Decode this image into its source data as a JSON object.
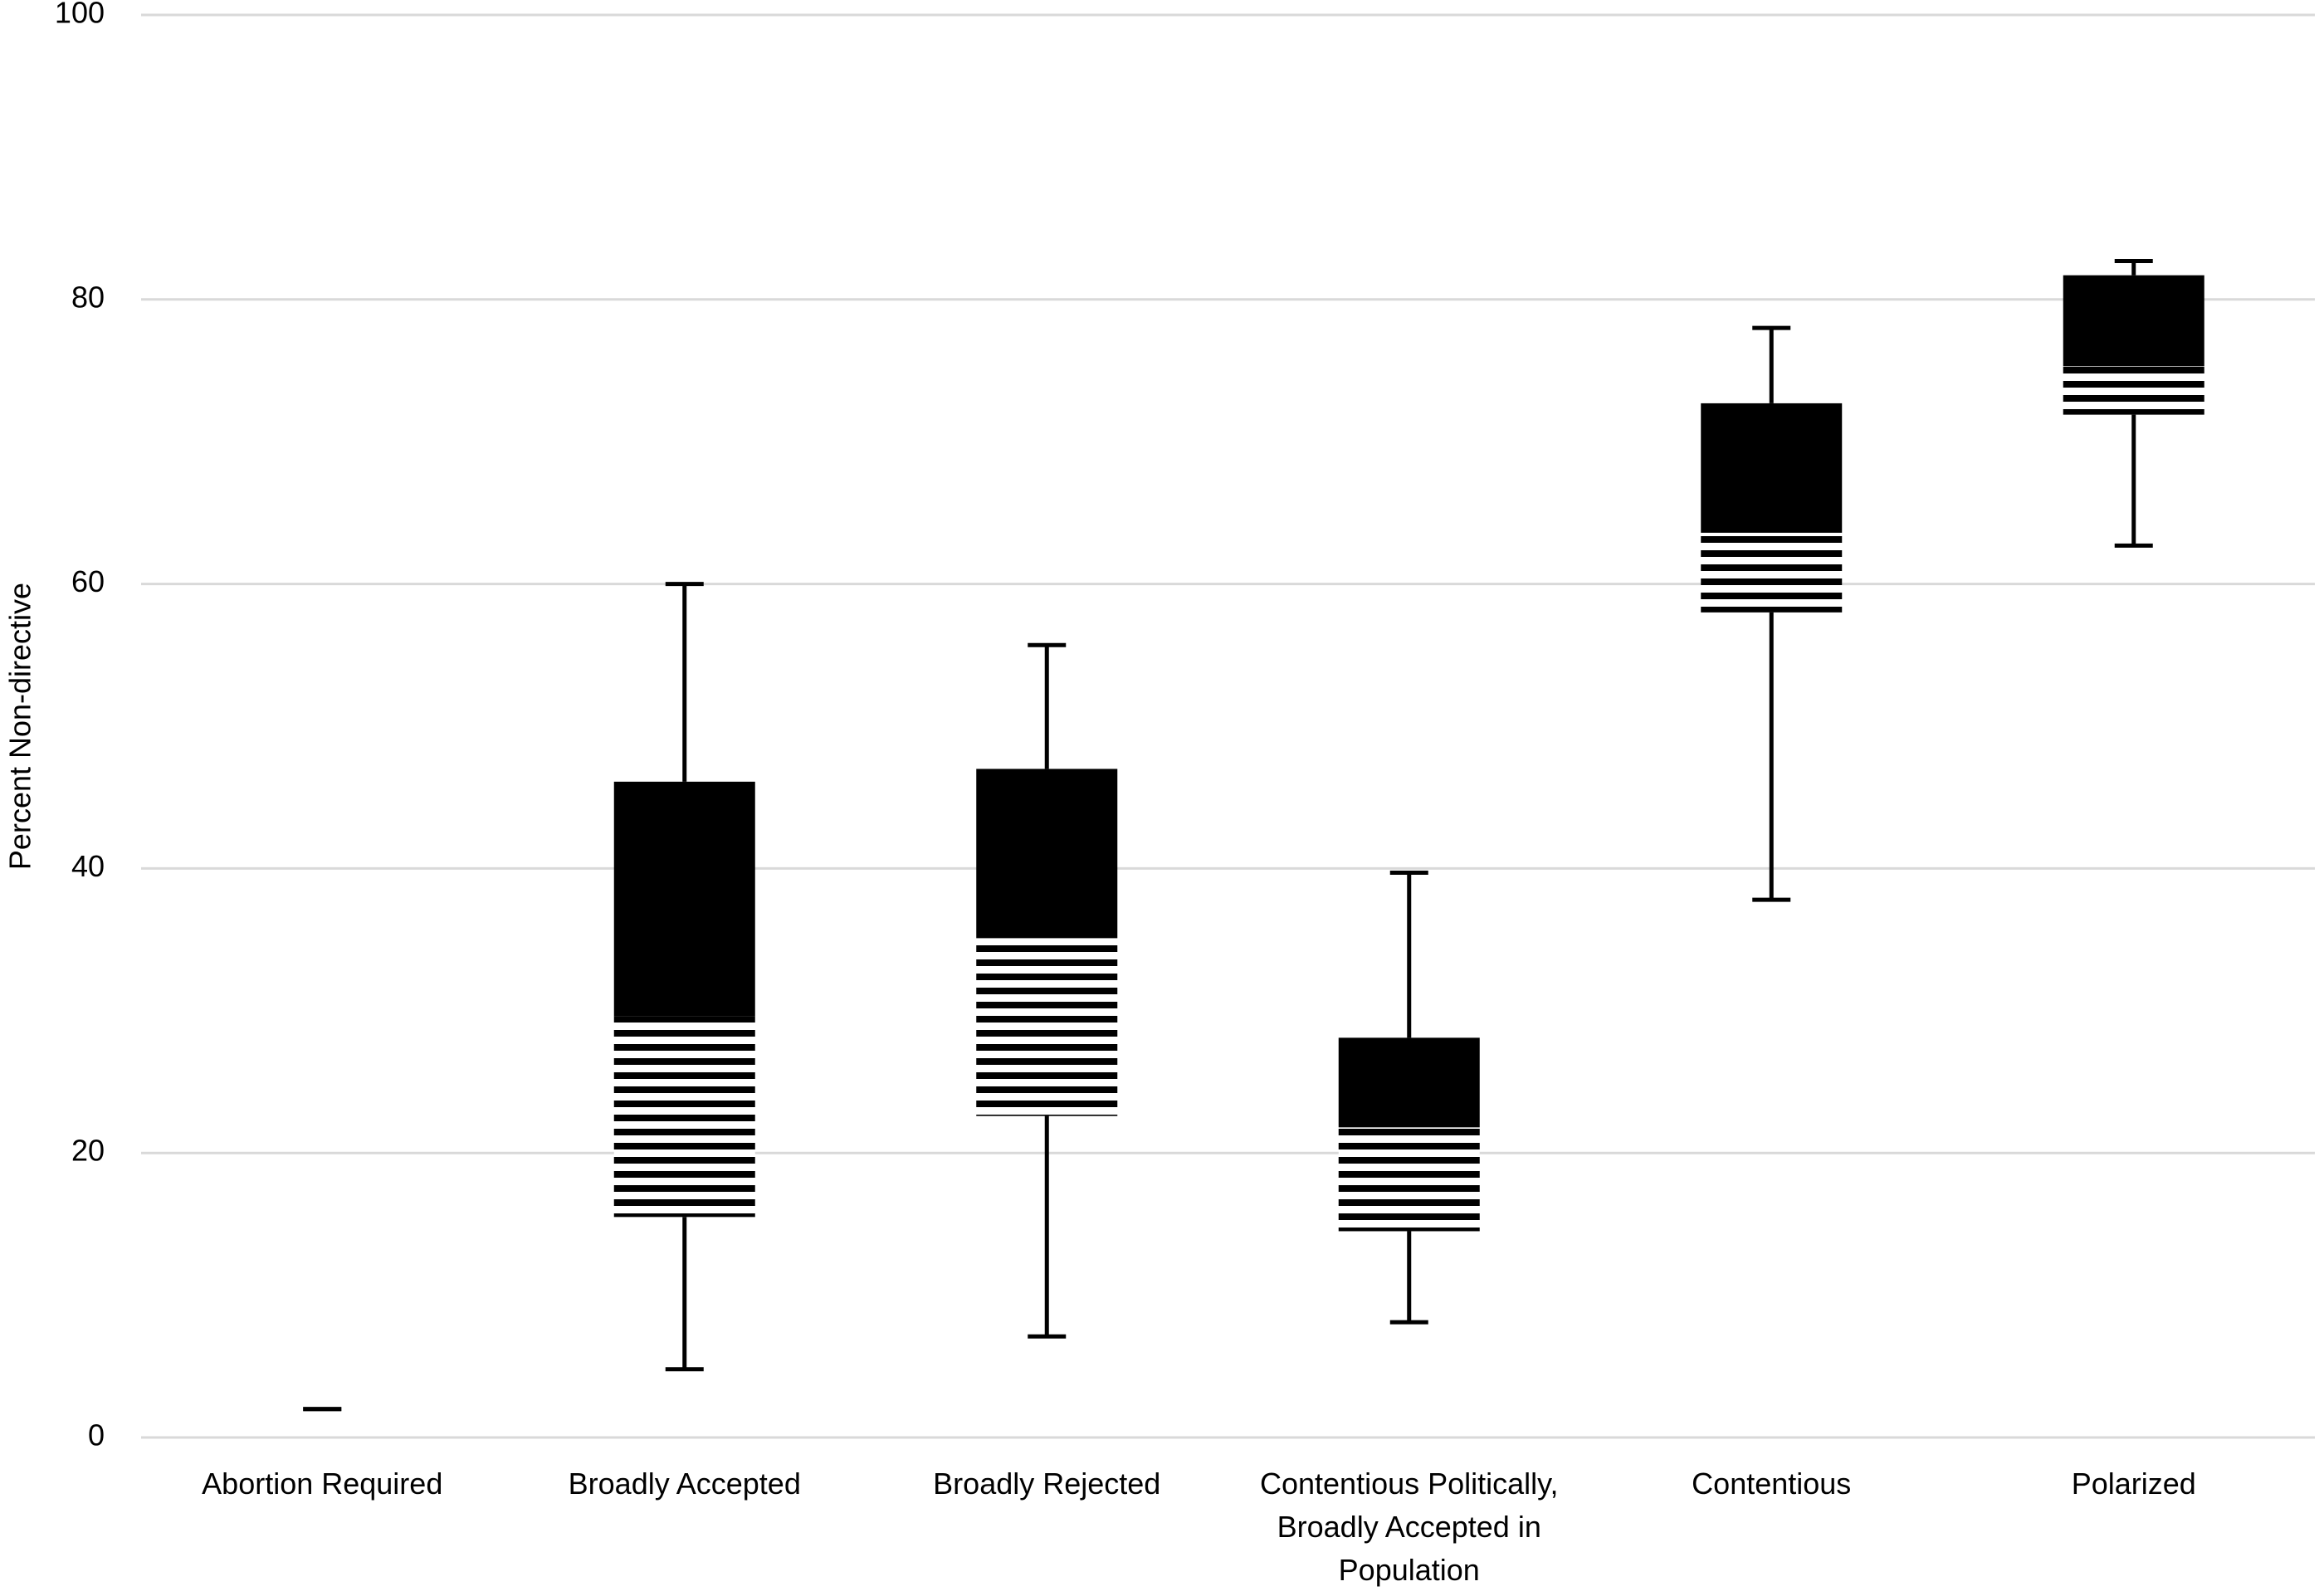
{
  "chart_data": {
    "type": "box",
    "y_label": "Percent Non-directive",
    "categories": [
      "Abortion Required",
      "Broadly Accepted",
      "Broadly Rejected",
      "Contentious Politically, Broadly Accepted in Population",
      "Contentious",
      "Polarized"
    ],
    "boxes": [
      {
        "min": 2,
        "q1": 2,
        "median": 2,
        "q3": 2,
        "max": 2
      },
      {
        "min": 4.8,
        "q1": 15.5,
        "median": 29.6,
        "q3": 46.1,
        "max": 60
      },
      {
        "min": 7.1,
        "q1": 22.6,
        "median": 35.1,
        "q3": 47,
        "max": 55.7
      },
      {
        "min": 8.1,
        "q1": 14.5,
        "median": 21.8,
        "q3": 28.1,
        "max": 39.7
      },
      {
        "min": 37.8,
        "q1": 58,
        "median": 63.6,
        "q3": 72.7,
        "max": 78
      },
      {
        "min": 62.7,
        "q1": 71.9,
        "median": 75.3,
        "q3": 81.7,
        "max": 82.7
      }
    ],
    "color": "#000000",
    "ylim": [
      0,
      100
    ],
    "yticks": [
      0,
      20,
      40,
      60,
      80,
      100
    ],
    "grid": true
  }
}
